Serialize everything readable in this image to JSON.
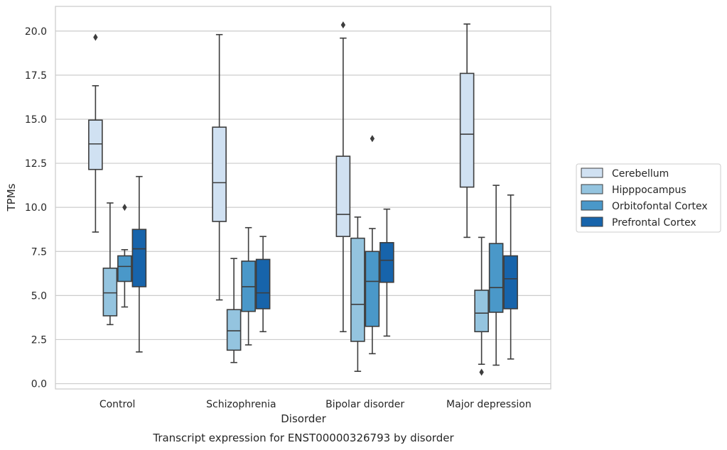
{
  "chart_data": {
    "type": "box",
    "title": "",
    "caption": "Transcript expression for ENST00000326793 by disorder",
    "xlabel": "Disorder",
    "ylabel": "TPMs",
    "ylim": [
      -0.3,
      21.4
    ],
    "yticks": [
      "0.0",
      "2.5",
      "5.0",
      "7.5",
      "10.0",
      "12.5",
      "15.0",
      "17.5",
      "20.0"
    ],
    "grid": "horizontal",
    "legend_position": "right",
    "categories": [
      "Control",
      "Schizophrenia",
      "Bipolar disorder",
      "Major depression"
    ],
    "series": [
      {
        "name": "Cerebellum",
        "color": "#d0e1f2",
        "boxes": [
          {
            "whislo": 8.6,
            "q1": 12.15,
            "med": 13.6,
            "q3": 14.95,
            "whishi": 16.9,
            "fliers": [
              19.65
            ]
          },
          {
            "whislo": 4.75,
            "q1": 9.2,
            "med": 11.4,
            "q3": 14.55,
            "whishi": 19.8,
            "fliers": []
          },
          {
            "whislo": 2.95,
            "q1": 8.35,
            "med": 9.6,
            "q3": 12.9,
            "whishi": 19.6,
            "fliers": [
              20.35
            ]
          },
          {
            "whislo": 8.3,
            "q1": 11.15,
            "med": 14.15,
            "q3": 17.6,
            "whishi": 20.4,
            "fliers": []
          }
        ]
      },
      {
        "name": "Hipppocampus",
        "color": "#94c4df",
        "boxes": [
          {
            "whislo": 3.35,
            "q1": 3.85,
            "med": 5.15,
            "q3": 6.55,
            "whishi": 10.25,
            "fliers": []
          },
          {
            "whislo": 1.2,
            "q1": 1.9,
            "med": 3.0,
            "q3": 4.2,
            "whishi": 7.1,
            "fliers": []
          },
          {
            "whislo": 0.7,
            "q1": 2.4,
            "med": 4.5,
            "q3": 8.25,
            "whishi": 9.45,
            "fliers": []
          },
          {
            "whislo": 1.1,
            "q1": 2.95,
            "med": 4.0,
            "q3": 5.3,
            "whishi": 8.3,
            "fliers": [
              0.65
            ]
          }
        ]
      },
      {
        "name": "Orbitofontal Cortex",
        "color": "#4a98c9",
        "boxes": [
          {
            "whislo": 4.35,
            "q1": 5.8,
            "med": 6.65,
            "q3": 7.25,
            "whishi": 7.6,
            "fliers": [
              10.0
            ]
          },
          {
            "whislo": 2.2,
            "q1": 4.1,
            "med": 5.5,
            "q3": 6.95,
            "whishi": 8.85,
            "fliers": []
          },
          {
            "whislo": 1.7,
            "q1": 3.25,
            "med": 5.8,
            "q3": 7.5,
            "whishi": 8.8,
            "fliers": [
              13.9
            ]
          },
          {
            "whislo": 1.05,
            "q1": 4.05,
            "med": 5.45,
            "q3": 7.95,
            "whishi": 11.25,
            "fliers": []
          }
        ]
      },
      {
        "name": "Prefrontal Cortex",
        "color": "#1764ab",
        "boxes": [
          {
            "whislo": 1.8,
            "q1": 5.5,
            "med": 7.65,
            "q3": 8.75,
            "whishi": 11.75,
            "fliers": []
          },
          {
            "whislo": 2.95,
            "q1": 4.25,
            "med": 5.15,
            "q3": 7.05,
            "whishi": 8.35,
            "fliers": []
          },
          {
            "whislo": 2.7,
            "q1": 5.75,
            "med": 7.0,
            "q3": 8.0,
            "whishi": 9.9,
            "fliers": []
          },
          {
            "whislo": 1.4,
            "q1": 4.25,
            "med": 5.95,
            "q3": 7.25,
            "whishi": 10.7,
            "fliers": []
          }
        ]
      }
    ]
  }
}
